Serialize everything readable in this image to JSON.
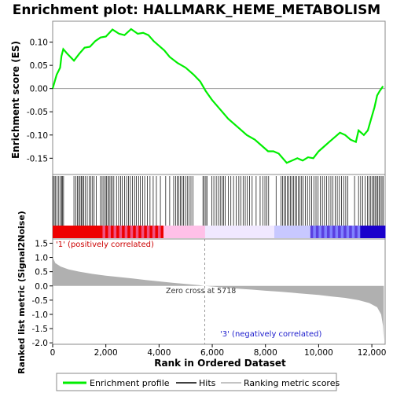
{
  "chart_data": {
    "title": "Enrichment plot: HALLMARK_HEME_METABOLISM",
    "x_label": "Rank in Ordered Dataset",
    "x_range": [
      0,
      12500
    ],
    "x_ticks": [
      "0",
      "2,000",
      "4,000",
      "6,000",
      "8,000",
      "10,000",
      "12,000"
    ],
    "x_tick_values": [
      0,
      2000,
      4000,
      6000,
      8000,
      10000,
      12000
    ],
    "panels": [
      {
        "type": "line",
        "name": "enrichment-score",
        "y_label": "Enrichment score (ES)",
        "ylim": [
          -0.185,
          0.145
        ],
        "y_ticks": [
          "0.10",
          "0.05",
          "0.00",
          "-0.05",
          "-0.10",
          "-0.15"
        ],
        "y_tick_values": [
          0.1,
          0.05,
          0.0,
          -0.05,
          -0.1,
          -0.15
        ],
        "zero_line": true,
        "color": "#00ee00",
        "points": [
          [
            0,
            0.0
          ],
          [
            150,
            0.03
          ],
          [
            280,
            0.045
          ],
          [
            330,
            0.07
          ],
          [
            400,
            0.085
          ],
          [
            550,
            0.075
          ],
          [
            800,
            0.06
          ],
          [
            1000,
            0.075
          ],
          [
            1200,
            0.088
          ],
          [
            1400,
            0.09
          ],
          [
            1600,
            0.102
          ],
          [
            1800,
            0.11
          ],
          [
            2000,
            0.112
          ],
          [
            2250,
            0.127
          ],
          [
            2500,
            0.118
          ],
          [
            2700,
            0.115
          ],
          [
            2950,
            0.128
          ],
          [
            3200,
            0.118
          ],
          [
            3400,
            0.12
          ],
          [
            3600,
            0.115
          ],
          [
            3800,
            0.102
          ],
          [
            4000,
            0.092
          ],
          [
            4200,
            0.082
          ],
          [
            4400,
            0.068
          ],
          [
            4700,
            0.055
          ],
          [
            5000,
            0.045
          ],
          [
            5300,
            0.03
          ],
          [
            5550,
            0.015
          ],
          [
            5750,
            -0.005
          ],
          [
            6000,
            -0.025
          ],
          [
            6300,
            -0.045
          ],
          [
            6600,
            -0.065
          ],
          [
            7000,
            -0.085
          ],
          [
            7300,
            -0.1
          ],
          [
            7600,
            -0.11
          ],
          [
            7900,
            -0.125
          ],
          [
            8100,
            -0.135
          ],
          [
            8300,
            -0.135
          ],
          [
            8500,
            -0.14
          ],
          [
            8800,
            -0.16
          ],
          [
            9000,
            -0.155
          ],
          [
            9200,
            -0.15
          ],
          [
            9400,
            -0.155
          ],
          [
            9600,
            -0.148
          ],
          [
            9800,
            -0.15
          ],
          [
            10000,
            -0.135
          ],
          [
            10200,
            -0.125
          ],
          [
            10400,
            -0.115
          ],
          [
            10600,
            -0.105
          ],
          [
            10800,
            -0.095
          ],
          [
            11000,
            -0.1
          ],
          [
            11200,
            -0.11
          ],
          [
            11400,
            -0.115
          ],
          [
            11500,
            -0.09
          ],
          [
            11700,
            -0.1
          ],
          [
            11850,
            -0.09
          ],
          [
            12000,
            -0.06
          ],
          [
            12100,
            -0.04
          ],
          [
            12200,
            -0.015
          ],
          [
            12300,
            -0.005
          ],
          [
            12420,
            0.005
          ]
        ]
      },
      {
        "type": "hits",
        "name": "gene-hits",
        "color": "#000000",
        "hit_ranks": [
          15,
          60,
          110,
          170,
          230,
          290,
          340,
          370,
          410,
          800,
          870,
          930,
          980,
          1030,
          1080,
          1120,
          1170,
          1220,
          1300,
          1380,
          1440,
          1500,
          1560,
          1640,
          1800,
          1860,
          1920,
          1980,
          2030,
          2080,
          2130,
          2190,
          2240,
          2300,
          2400,
          2480,
          2560,
          2620,
          2700,
          2780,
          2850,
          2920,
          3000,
          3080,
          3150,
          3230,
          3300,
          3380,
          3460,
          3560,
          3660,
          3780,
          3900,
          4050,
          4250,
          4400,
          4550,
          4620,
          4680,
          4740,
          4800,
          4860,
          4920,
          4990,
          5060,
          5130,
          5200,
          5270,
          5650,
          5700,
          5760,
          5800,
          5980,
          6060,
          6150,
          6230,
          6300,
          6370,
          6430,
          6490,
          6600,
          6700,
          6800,
          6900,
          7000,
          7080,
          7160,
          7240,
          7320,
          7400,
          7500,
          7650,
          7800,
          7900,
          7980,
          8050,
          8120,
          8400,
          8580,
          8640,
          8700,
          8760,
          8820,
          8880,
          8940,
          9000,
          9060,
          9120,
          9180,
          9240,
          9300,
          9360,
          9420,
          9500,
          9580,
          9660,
          9740,
          9820,
          9900,
          9980,
          10060,
          10140,
          10220,
          10300,
          10380,
          10460,
          10540,
          10620,
          10700,
          10780,
          10860,
          10940,
          11020,
          11100,
          11350,
          11500,
          11580,
          11660,
          11750,
          11840,
          11900,
          11960,
          12020,
          12070,
          12120,
          12170,
          12220,
          12270,
          12320,
          12380,
          12420
        ]
      },
      {
        "type": "area",
        "name": "ranked-list-metric",
        "y_label": "Ranked list metric (Signal2Noise)",
        "ylim": [
          -2.05,
          1.65
        ],
        "y_ticks": [
          "1.5",
          "1.0",
          "0.5",
          "0.0",
          "-0.5",
          "-1.0",
          "-1.5",
          "-2.0"
        ],
        "y_tick_values": [
          1.5,
          1.0,
          0.5,
          0.0,
          -0.5,
          -1.0,
          -1.5,
          -2.0
        ],
        "color": "#b0b0b0",
        "points": [
          [
            0,
            1.15
          ],
          [
            30,
            0.95
          ],
          [
            100,
            0.8
          ],
          [
            300,
            0.68
          ],
          [
            600,
            0.58
          ],
          [
            1000,
            0.5
          ],
          [
            1500,
            0.42
          ],
          [
            2000,
            0.36
          ],
          [
            2500,
            0.31
          ],
          [
            3000,
            0.26
          ],
          [
            3500,
            0.21
          ],
          [
            4000,
            0.16
          ],
          [
            4500,
            0.11
          ],
          [
            5000,
            0.07
          ],
          [
            5500,
            0.03
          ],
          [
            5718,
            0.0
          ],
          [
            6000,
            -0.02
          ],
          [
            6500,
            -0.06
          ],
          [
            7000,
            -0.1
          ],
          [
            7500,
            -0.13
          ],
          [
            8000,
            -0.17
          ],
          [
            8500,
            -0.2
          ],
          [
            9000,
            -0.24
          ],
          [
            9500,
            -0.28
          ],
          [
            10000,
            -0.32
          ],
          [
            10500,
            -0.37
          ],
          [
            11000,
            -0.42
          ],
          [
            11500,
            -0.5
          ],
          [
            11900,
            -0.6
          ],
          [
            12200,
            -0.75
          ],
          [
            12350,
            -1.0
          ],
          [
            12420,
            -1.4
          ],
          [
            12450,
            -1.9
          ]
        ],
        "zero_cross": 5718
      }
    ],
    "annotations": {
      "positive": "'1' (positively correlated)",
      "negative": "'3' (negatively correlated)",
      "zero_cross": "Zero cross at 5718"
    },
    "legend": {
      "placement": "bottom",
      "entries": [
        {
          "label": "Enrichment profile",
          "color": "#00ee00"
        },
        {
          "label": "Hits",
          "color": "#000000"
        },
        {
          "label": "Ranking metric scores",
          "color": "#b0b0b0"
        }
      ]
    },
    "heatbar_colors": {
      "positive_strong": "#ee0000",
      "positive_weak": "#ffc0e8",
      "neutral": "#f0e8ff",
      "negative_weak": "#c8c8ff",
      "negative_strong": "#1a00cc"
    }
  }
}
